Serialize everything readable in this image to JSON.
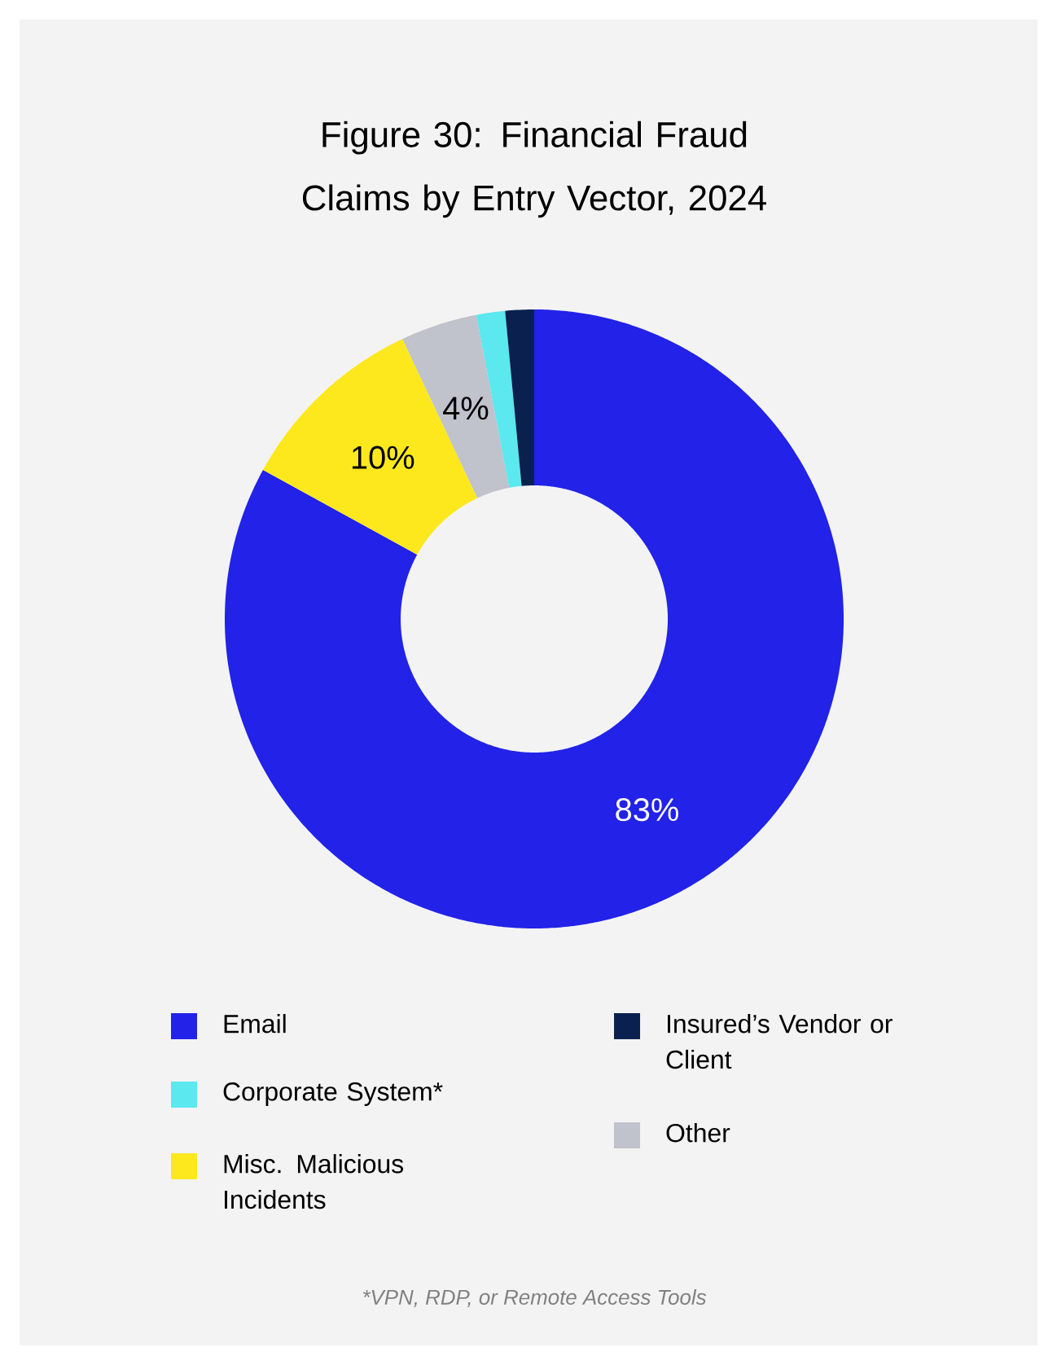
{
  "chart_data": {
    "type": "donut",
    "title": "Figure 30: Financial Fraud Claims by Entry Vector, 2024",
    "categories": [
      "Email",
      "Misc. Malicious Incidents",
      "Other",
      "Corporate System*",
      "Insured’s Vendor or Client"
    ],
    "values": [
      83,
      10,
      4,
      1.5,
      1.5
    ],
    "colors": [
      "#2222e8",
      "#fde81e",
      "#c0c2cc",
      "#5be8ee",
      "#0a2150"
    ],
    "value_labels": [
      "83%",
      "10%",
      "4%",
      null,
      null
    ],
    "legend": "bottom",
    "annotations": [
      "*VPN, RDP, or Remote Access Tools"
    ]
  }
}
